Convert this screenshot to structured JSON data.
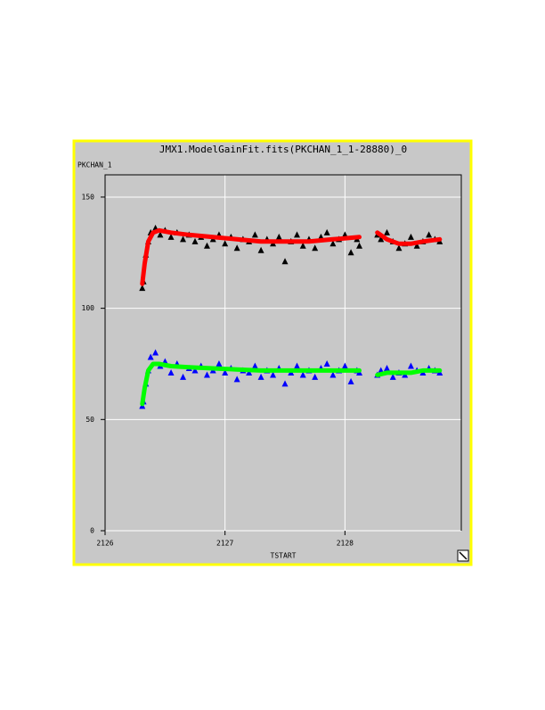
{
  "chart_data": {
    "type": "scatter",
    "title": "JMX1.ModelGainFit.fits(PKCHAN_1_1-28880)_0",
    "y_label": "PKCHAN_1",
    "x_label": "TSTART",
    "xlim": [
      2126,
      2128.97
    ],
    "xticks": [
      2126,
      2127,
      2128
    ],
    "ylim": [
      0,
      160
    ],
    "yticks": [
      0,
      50,
      100,
      150
    ],
    "grid": true,
    "series": [
      {
        "mode": "markers",
        "color": "#000000",
        "x": [
          2126.31,
          2126.32,
          2126.34,
          2126.36,
          2126.38,
          2126.42,
          2126.46,
          2126.5,
          2126.55,
          2126.6,
          2126.65,
          2126.7,
          2126.75,
          2126.8,
          2126.85,
          2126.9,
          2126.95,
          2127.0,
          2127.05,
          2127.1,
          2127.15,
          2127.2,
          2127.25,
          2127.3,
          2127.35,
          2127.4,
          2127.45,
          2127.5,
          2127.55,
          2127.6,
          2127.65,
          2127.7,
          2127.75,
          2127.8,
          2127.85,
          2127.9,
          2127.95,
          2128.0,
          2128.05,
          2128.1,
          2128.12,
          2128.27,
          2128.3,
          2128.35,
          2128.4,
          2128.45,
          2128.5,
          2128.55,
          2128.6,
          2128.65,
          2128.7,
          2128.75,
          2128.79
        ],
        "values": [
          109,
          112,
          124,
          130,
          134,
          136,
          133,
          135,
          132,
          134,
          131,
          133,
          130,
          132,
          128,
          131,
          133,
          129,
          132,
          127,
          131,
          130,
          133,
          126,
          131,
          129,
          132,
          121,
          130,
          133,
          128,
          131,
          127,
          132,
          134,
          129,
          131,
          133,
          125,
          131,
          128,
          133,
          131,
          134,
          130,
          127,
          129,
          132,
          128,
          130,
          133,
          131,
          130
        ]
      },
      {
        "mode": "markers",
        "color": "#0000ff",
        "x": [
          2126.31,
          2126.32,
          2126.34,
          2126.36,
          2126.38,
          2126.42,
          2126.46,
          2126.5,
          2126.55,
          2126.6,
          2126.65,
          2126.7,
          2126.75,
          2126.8,
          2126.85,
          2126.9,
          2126.95,
          2127.0,
          2127.05,
          2127.1,
          2127.15,
          2127.2,
          2127.25,
          2127.3,
          2127.35,
          2127.4,
          2127.45,
          2127.5,
          2127.55,
          2127.6,
          2127.65,
          2127.7,
          2127.75,
          2127.8,
          2127.85,
          2127.9,
          2127.95,
          2128.0,
          2128.05,
          2128.1,
          2128.12,
          2128.27,
          2128.3,
          2128.35,
          2128.4,
          2128.45,
          2128.5,
          2128.55,
          2128.6,
          2128.65,
          2128.7,
          2128.75,
          2128.79
        ],
        "values": [
          56,
          58,
          66,
          72,
          78,
          80,
          74,
          76,
          71,
          75,
          69,
          73,
          72,
          74,
          70,
          72,
          75,
          71,
          73,
          68,
          72,
          71,
          74,
          69,
          72,
          70,
          73,
          66,
          71,
          74,
          70,
          72,
          69,
          73,
          75,
          70,
          72,
          74,
          67,
          72,
          71,
          70,
          72,
          73,
          69,
          71,
          70,
          74,
          72,
          71,
          73,
          72,
          71
        ]
      },
      {
        "mode": "lines",
        "color": "#ff0000",
        "x": [
          2126.31,
          2126.33,
          2126.36,
          2126.4,
          2126.45,
          2126.55,
          2126.7,
          2126.9,
          2127.1,
          2127.3,
          2127.5,
          2127.7,
          2127.9,
          2128.12,
          null,
          2128.27,
          2128.35,
          2128.45,
          2128.55,
          2128.65,
          2128.79
        ],
        "values": [
          111,
          120,
          130,
          134,
          135,
          134,
          133,
          132,
          131,
          130,
          130,
          130,
          131,
          132,
          null,
          134,
          131,
          129,
          129,
          130,
          131
        ]
      },
      {
        "mode": "lines",
        "color": "#00ff00",
        "x": [
          2126.31,
          2126.33,
          2126.36,
          2126.4,
          2126.45,
          2126.55,
          2126.7,
          2126.9,
          2127.1,
          2127.3,
          2127.5,
          2127.7,
          2127.9,
          2128.12,
          null,
          2128.27,
          2128.35,
          2128.45,
          2128.55,
          2128.65,
          2128.79
        ],
        "values": [
          57,
          64,
          72,
          75,
          75,
          74,
          73.5,
          73,
          72.5,
          72,
          72,
          72,
          72,
          72,
          null,
          70,
          71,
          71,
          71,
          72,
          72
        ]
      }
    ]
  }
}
